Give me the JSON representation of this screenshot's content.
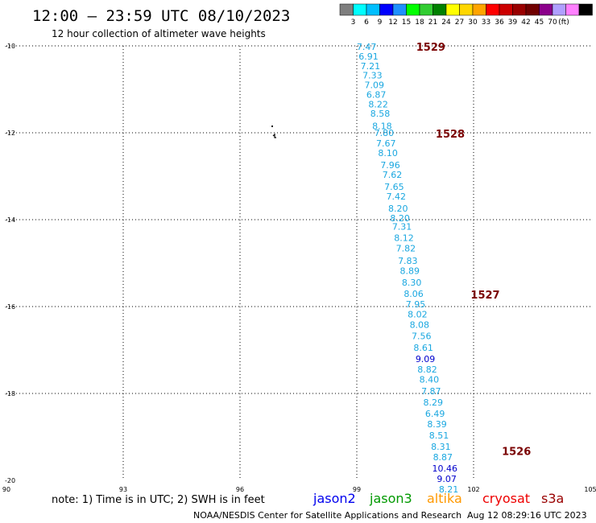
{
  "header": {
    "title": "12:00 — 23:59 UTC 08/10/2023",
    "subtitle": "12 hour collection of altimeter wave heights"
  },
  "color_scale": {
    "colors": [
      "#7f7f7f",
      "#00ffff",
      "#00bfff",
      "#0000ff",
      "#1e90ff",
      "#00ff00",
      "#32cd32",
      "#008000",
      "#ffff00",
      "#ffd700",
      "#ffa500",
      "#ff0000",
      "#cc0000",
      "#990000",
      "#700000",
      "#8b008b",
      "#b0a0ff",
      "#ff80ff",
      "#000000"
    ],
    "labels": [
      "3",
      "6",
      "9",
      "12",
      "15",
      "18",
      "21",
      "24",
      "27",
      "30",
      "33",
      "36",
      "39",
      "42",
      "45",
      "70"
    ],
    "unit": "(ft)"
  },
  "footer": {
    "note": "note:  1) Time is in UTC;  2) SWH is in feet",
    "credit": "NOAA/NESDIS Center for Satellite Applications and Research",
    "timestamp": "Aug 12 08:29:16 UTC 2023",
    "satellites": [
      {
        "name": "jason2",
        "color": "#0000ee"
      },
      {
        "name": "jason3",
        "color": "#009900"
      },
      {
        "name": "altika",
        "color": "#ff9900"
      },
      {
        "name": "cryosat",
        "color": "#ee0000"
      },
      {
        "name": "s3a",
        "color": "#990000"
      }
    ]
  },
  "chart_data": {
    "type": "scatter",
    "xlim": [
      90,
      105
    ],
    "ylim": [
      -20,
      -10
    ],
    "x_ticks": [
      90,
      93,
      96,
      99,
      102,
      105
    ],
    "x_tick_labels": [
      "90",
      "93",
      "96",
      "99",
      "102",
      "105"
    ],
    "y_ticks": [
      -10,
      -12,
      -14,
      -16,
      -18,
      -20
    ],
    "y_tick_labels": [
      "-10",
      "-12",
      "-14",
      "-16",
      "-18",
      "-20"
    ],
    "grid": true,
    "points": [
      {
        "lon": 99.25,
        "lat": -10.02,
        "v": "7.47",
        "c": "#1aa7e0"
      },
      {
        "lon": 99.3,
        "lat": -10.24,
        "v": "6.91",
        "c": "#1aa7e0"
      },
      {
        "lon": 99.35,
        "lat": -10.46,
        "v": "7.21",
        "c": "#1aa7e0"
      },
      {
        "lon": 99.4,
        "lat": -10.68,
        "v": "7.33",
        "c": "#1aa7e0"
      },
      {
        "lon": 99.45,
        "lat": -10.9,
        "v": "7.09",
        "c": "#1aa7e0"
      },
      {
        "lon": 99.5,
        "lat": -11.12,
        "v": "6.87",
        "c": "#1aa7e0"
      },
      {
        "lon": 99.55,
        "lat": -11.34,
        "v": "8.22",
        "c": "#1aa7e0"
      },
      {
        "lon": 99.6,
        "lat": -11.56,
        "v": "8.58",
        "c": "#1aa7e0"
      },
      {
        "lon": 99.65,
        "lat": -11.84,
        "v": "8.18",
        "c": "#1aa7e0"
      },
      {
        "lon": 99.7,
        "lat": -12.0,
        "v": "7.80",
        "c": "#1aa7e0"
      },
      {
        "lon": 99.75,
        "lat": -12.24,
        "v": "7.67",
        "c": "#1aa7e0"
      },
      {
        "lon": 99.8,
        "lat": -12.46,
        "v": "8.10",
        "c": "#1aa7e0"
      },
      {
        "lon": 99.86,
        "lat": -12.74,
        "v": "7.96",
        "c": "#1aa7e0"
      },
      {
        "lon": 99.91,
        "lat": -12.96,
        "v": "7.62",
        "c": "#1aa7e0"
      },
      {
        "lon": 99.96,
        "lat": -13.24,
        "v": "7.65",
        "c": "#1aa7e0"
      },
      {
        "lon": 100.01,
        "lat": -13.46,
        "v": "7.42",
        "c": "#1aa7e0"
      },
      {
        "lon": 100.06,
        "lat": -13.74,
        "v": "8.20",
        "c": "#1aa7e0"
      },
      {
        "lon": 100.11,
        "lat": -13.96,
        "v": "8.20",
        "c": "#1aa7e0"
      },
      {
        "lon": 100.16,
        "lat": -14.16,
        "v": "7.31",
        "c": "#1aa7e0"
      },
      {
        "lon": 100.21,
        "lat": -14.42,
        "v": "8.12",
        "c": "#1aa7e0"
      },
      {
        "lon": 100.26,
        "lat": -14.66,
        "v": "7.82",
        "c": "#1aa7e0"
      },
      {
        "lon": 100.31,
        "lat": -14.94,
        "v": "7.83",
        "c": "#1aa7e0"
      },
      {
        "lon": 100.36,
        "lat": -15.18,
        "v": "8.89",
        "c": "#1aa7e0"
      },
      {
        "lon": 100.41,
        "lat": -15.44,
        "v": "8.30",
        "c": "#1aa7e0"
      },
      {
        "lon": 100.46,
        "lat": -15.7,
        "v": "8.06",
        "c": "#1aa7e0"
      },
      {
        "lon": 100.51,
        "lat": -15.94,
        "v": "7.95",
        "c": "#1aa7e0"
      },
      {
        "lon": 100.56,
        "lat": -16.18,
        "v": "8.02",
        "c": "#1aa7e0"
      },
      {
        "lon": 100.61,
        "lat": -16.42,
        "v": "8.08",
        "c": "#1aa7e0"
      },
      {
        "lon": 100.66,
        "lat": -16.68,
        "v": "7.56",
        "c": "#1aa7e0"
      },
      {
        "lon": 100.71,
        "lat": -16.94,
        "v": "8.61",
        "c": "#1aa7e0"
      },
      {
        "lon": 100.76,
        "lat": -17.2,
        "v": "9.09",
        "c": "#0000cc"
      },
      {
        "lon": 100.81,
        "lat": -17.44,
        "v": "8.82",
        "c": "#1aa7e0"
      },
      {
        "lon": 100.86,
        "lat": -17.68,
        "v": "8.40",
        "c": "#1aa7e0"
      },
      {
        "lon": 100.91,
        "lat": -17.94,
        "v": "7.87",
        "c": "#1aa7e0"
      },
      {
        "lon": 100.96,
        "lat": -18.2,
        "v": "8.29",
        "c": "#1aa7e0"
      },
      {
        "lon": 101.01,
        "lat": -18.46,
        "v": "6.49",
        "c": "#1aa7e0"
      },
      {
        "lon": 101.06,
        "lat": -18.7,
        "v": "8.39",
        "c": "#1aa7e0"
      },
      {
        "lon": 101.11,
        "lat": -18.96,
        "v": "8.51",
        "c": "#1aa7e0"
      },
      {
        "lon": 101.16,
        "lat": -19.22,
        "v": "8.31",
        "c": "#1aa7e0"
      },
      {
        "lon": 101.21,
        "lat": -19.46,
        "v": "8.87",
        "c": "#1aa7e0"
      },
      {
        "lon": 101.26,
        "lat": -19.72,
        "v": "10.46",
        "c": "#0000cc"
      },
      {
        "lon": 101.31,
        "lat": -19.96,
        "v": "9.07",
        "c": "#0000cc"
      },
      {
        "lon": 101.36,
        "lat": -20.2,
        "v": "8.21",
        "c": "#1aa7e0"
      }
    ],
    "time_labels": [
      {
        "lon": 100.9,
        "lat": -10.02,
        "t": "1529"
      },
      {
        "lon": 101.4,
        "lat": -12.02,
        "t": "1528"
      },
      {
        "lon": 102.3,
        "lat": -15.72,
        "t": "1527"
      },
      {
        "lon": 103.1,
        "lat": -19.32,
        "t": "1526"
      }
    ]
  }
}
